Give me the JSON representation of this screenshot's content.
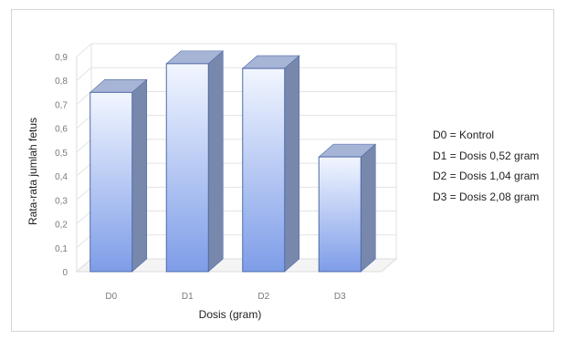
{
  "chart_data": {
    "type": "bar",
    "style": "3d-column",
    "categories": [
      "D0",
      "D1",
      "D2",
      "D3"
    ],
    "values": [
      0.75,
      0.87,
      0.85,
      0.48
    ],
    "title": "",
    "xlabel": "Dosis (gram)",
    "ylabel": "Rata-rata jumlah fetus",
    "ylim": [
      0,
      0.9
    ],
    "yticks": [
      "0",
      "0,1",
      "0,2",
      "0,3",
      "0,4",
      "0,5",
      "0,6",
      "0,7",
      "0,8",
      "0,9"
    ],
    "grid": true,
    "legend_position": "right",
    "bar_color_top": "#f2f6ff",
    "bar_color_bottom": "#7e9de8",
    "bar_top_color": "#a6b4d6",
    "bar_side_color": "#7888ad",
    "bar_edge_color": "#4f6aa8",
    "annotations": [
      "D0 = Kontrol",
      "D1 = Dosis 0,52 gram",
      "D2 = Dosis 1,04 gram",
      "D3 = Dosis 2,08 gram"
    ]
  }
}
